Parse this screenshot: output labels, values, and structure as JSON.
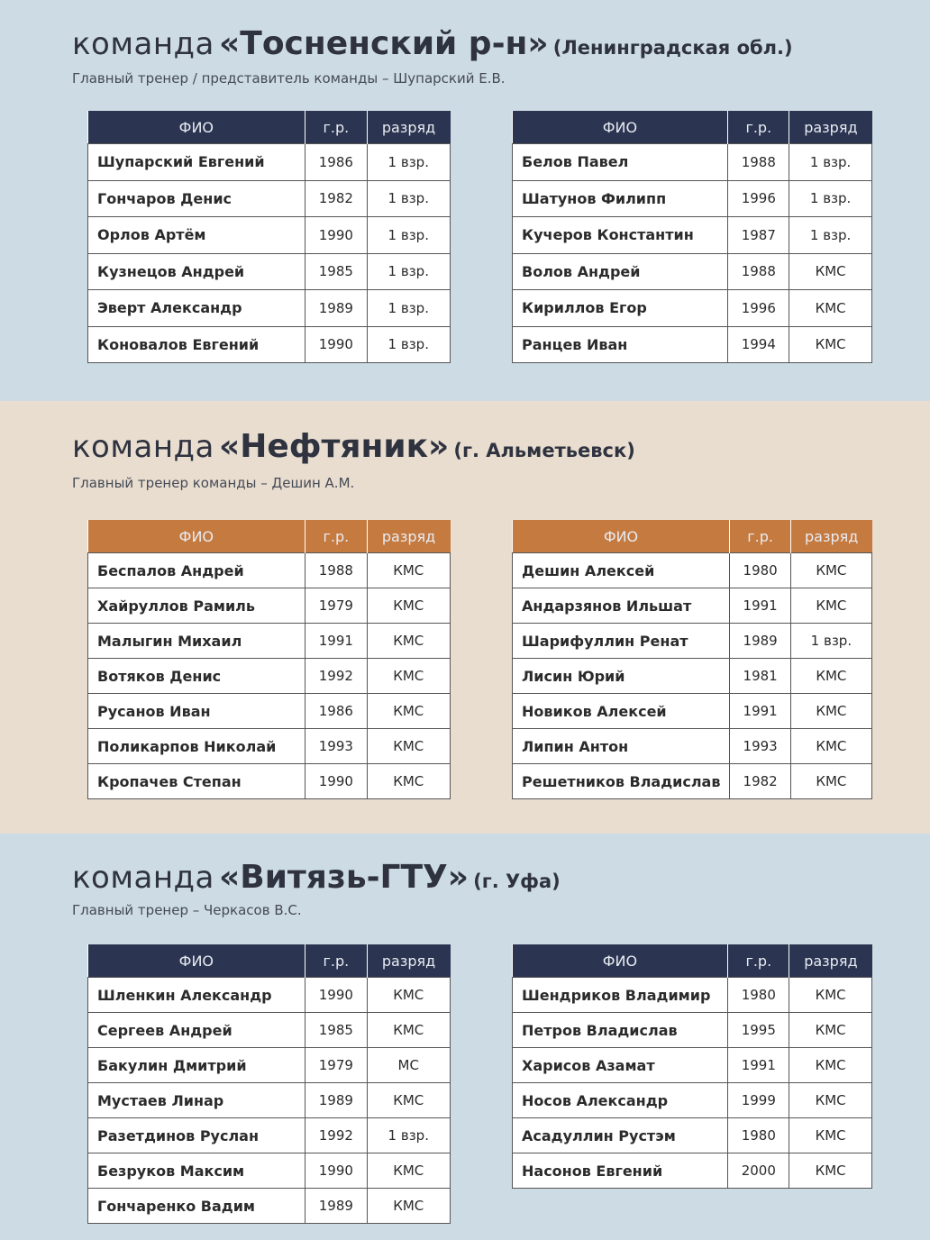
{
  "teams": [
    {
      "prefix": "команда",
      "name": "«Тосненский р-н»",
      "region": "(Ленинградская обл.)",
      "coach": "Главный тренер / представитель команды – Шупарский Е.В.",
      "tables": [
        {
          "header": [
            "ФИО",
            "г.р.",
            "разряд"
          ],
          "rows": [
            [
              "Шупарский Евгений",
              1986,
              "1 взр."
            ],
            [
              "Гончаров Денис",
              1982,
              "1 взр."
            ],
            [
              "Орлов Артём",
              1990,
              "1 взр."
            ],
            [
              "Кузнецов Андрей",
              1985,
              "1 взр."
            ],
            [
              "Эверт Александр",
              1989,
              "1 взр."
            ],
            [
              "Коновалов Евгений",
              1990,
              "1 взр."
            ]
          ]
        },
        {
          "header": [
            "ФИО",
            "г.р.",
            "разряд"
          ],
          "rows": [
            [
              "Белов Павел",
              1988,
              "1 взр."
            ],
            [
              "Шатунов Филипп",
              1996,
              "1 взр."
            ],
            [
              "Кучеров Константин",
              1987,
              "1 взр."
            ],
            [
              "Волов Андрей",
              1988,
              "КМС"
            ],
            [
              "Кириллов Егор",
              1996,
              "КМС"
            ],
            [
              "Ранцев Иван",
              1994,
              "КМС"
            ]
          ]
        }
      ]
    },
    {
      "prefix": "команда",
      "name": "«Нефтяник»",
      "region": "(г. Альметьевск)",
      "coach": "Главный тренер команды – Дешин А.М.",
      "tables": [
        {
          "header": [
            "ФИО",
            "г.р.",
            "разряд"
          ],
          "rows": [
            [
              "Беспалов Андрей",
              1988,
              "КМС"
            ],
            [
              "Хайруллов Рамиль",
              1979,
              "КМС"
            ],
            [
              "Малыгин Михаил",
              1991,
              "КМС"
            ],
            [
              "Вотяков Денис",
              1992,
              "КМС"
            ],
            [
              "Русанов Иван",
              1986,
              "КМС"
            ],
            [
              "Поликарпов Николай",
              1993,
              "КМС"
            ],
            [
              "Кропачев Степан",
              1990,
              "КМС"
            ]
          ]
        },
        {
          "header": [
            "ФИО",
            "г.р.",
            "разряд"
          ],
          "rows": [
            [
              "Дешин Алексей",
              1980,
              "КМС"
            ],
            [
              "Андарзянов Ильшат",
              1991,
              "КМС"
            ],
            [
              "Шарифуллин Ренат",
              1989,
              "1 взр."
            ],
            [
              "Лисин Юрий",
              1981,
              "КМС"
            ],
            [
              "Новиков Алексей",
              1991,
              "КМС"
            ],
            [
              "Липин Антон",
              1993,
              "КМС"
            ],
            [
              "Решетников Владислав",
              1982,
              "КМС"
            ]
          ]
        }
      ]
    },
    {
      "prefix": "команда",
      "name": "«Витязь-ГТУ»",
      "region": "(г. Уфа)",
      "coach": "Главный тренер – Черкасов В.С.",
      "tables": [
        {
          "header": [
            "ФИО",
            "г.р.",
            "разряд"
          ],
          "rows": [
            [
              "Шленкин Александр",
              1990,
              "КМС"
            ],
            [
              "Сергеев Андрей",
              1985,
              "КМС"
            ],
            [
              "Бакулин Дмитрий",
              1979,
              "МС"
            ],
            [
              "Мустаев Линар",
              1989,
              "КМС"
            ],
            [
              "Разетдинов Руслан",
              1992,
              "1 взр."
            ],
            [
              "Безруков Максим",
              1990,
              "КМС"
            ],
            [
              "Гончаренко Вадим",
              1989,
              "КМС"
            ]
          ]
        },
        {
          "header": [
            "ФИО",
            "г.р.",
            "разряд"
          ],
          "rows": [
            [
              "Шендриков Владимир",
              1980,
              "КМС"
            ],
            [
              "Петров Владислав",
              1995,
              "КМС"
            ],
            [
              "Харисов Азамат",
              1991,
              "КМС"
            ],
            [
              "Носов Александр",
              1999,
              "КМС"
            ],
            [
              "Асадуллин Рустэм",
              1980,
              "КМС"
            ],
            [
              "Насонов Евгений",
              2000,
              "КМС"
            ]
          ]
        }
      ]
    }
  ]
}
